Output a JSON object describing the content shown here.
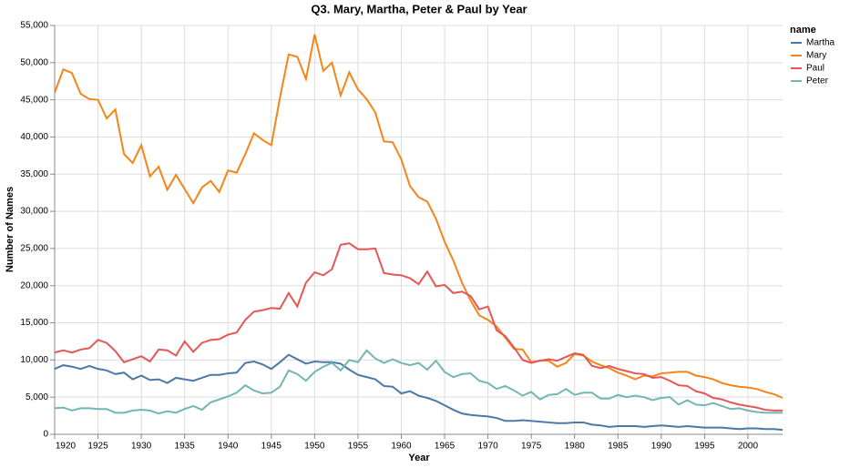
{
  "chart_data": {
    "type": "line",
    "title": "Q3. Mary, Martha, Peter & Paul by Year",
    "x_label": "Year",
    "y_label": "Number of Names",
    "legend_title": "name",
    "legend_position": "right",
    "grid": true,
    "x": [
      1920,
      1921,
      1922,
      1923,
      1924,
      1925,
      1926,
      1927,
      1928,
      1929,
      1930,
      1931,
      1932,
      1933,
      1934,
      1935,
      1936,
      1937,
      1938,
      1939,
      1940,
      1941,
      1942,
      1943,
      1944,
      1945,
      1946,
      1947,
      1948,
      1949,
      1950,
      1951,
      1952,
      1953,
      1954,
      1955,
      1956,
      1957,
      1958,
      1959,
      1960,
      1961,
      1962,
      1963,
      1964,
      1965,
      1966,
      1967,
      1968,
      1969,
      1970,
      1971,
      1972,
      1973,
      1974,
      1975,
      1976,
      1977,
      1978,
      1979,
      1980,
      1981,
      1982,
      1983,
      1984,
      1985,
      1986,
      1987,
      1988,
      1989,
      1990,
      1991,
      1992,
      1993,
      1994,
      1995,
      1996,
      1997,
      1998,
      1999,
      2000,
      2001,
      2002,
      2003,
      2004
    ],
    "xlim": [
      1920,
      2004
    ],
    "xticks": [
      1920,
      1925,
      1930,
      1935,
      1940,
      1945,
      1950,
      1955,
      1960,
      1965,
      1970,
      1975,
      1980,
      1985,
      1990,
      1995,
      2000
    ],
    "ylim": [
      0,
      55000
    ],
    "yticks": [
      0,
      {
        "value": 5000,
        "label": "5,000"
      },
      {
        "value": 10000,
        "label": "10,000"
      },
      {
        "value": 15000,
        "label": "15,000"
      },
      {
        "value": 20000,
        "label": "20,000"
      },
      {
        "value": 25000,
        "label": "25,000"
      },
      {
        "value": 30000,
        "label": "30,000"
      },
      {
        "value": 35000,
        "label": "35,000"
      },
      {
        "value": 40000,
        "label": "40,000"
      },
      {
        "value": 45000,
        "label": "45,000"
      },
      {
        "value": 50000,
        "label": "50,000"
      },
      {
        "value": 55000,
        "label": "55,000"
      }
    ],
    "series": [
      {
        "name": "Martha",
        "color": "#4c78a8",
        "values": [
          8800,
          9300,
          9100,
          8800,
          9200,
          8800,
          8600,
          8100,
          8300,
          7400,
          7900,
          7300,
          7400,
          6900,
          7600,
          7400,
          7200,
          7600,
          8000,
          8000,
          8200,
          8300,
          9600,
          9800,
          9400,
          8800,
          9700,
          10700,
          10100,
          9500,
          9800,
          9700,
          9700,
          9500,
          8700,
          8000,
          7700,
          7400,
          6500,
          6400,
          5500,
          5800,
          5200,
          4900,
          4500,
          3900,
          3300,
          2800,
          2600,
          2500,
          2400,
          2200,
          1800,
          1800,
          1900,
          1800,
          1700,
          1600,
          1500,
          1500,
          1600,
          1600,
          1300,
          1200,
          1000,
          1100,
          1100,
          1100,
          1000,
          1100,
          1200,
          1100,
          1000,
          1100,
          1000,
          900,
          900,
          900,
          800,
          700,
          800,
          800,
          700,
          700,
          600
        ]
      },
      {
        "name": "Mary",
        "color": "#f58518",
        "values": [
          46000,
          49100,
          48600,
          45800,
          45100,
          45000,
          42500,
          43700,
          37700,
          36500,
          38900,
          34700,
          36000,
          32900,
          34900,
          33000,
          31100,
          33200,
          34100,
          32600,
          35500,
          35200,
          37700,
          40500,
          39600,
          38900,
          45300,
          51100,
          50800,
          47800,
          53800,
          48900,
          50000,
          45600,
          48700,
          46400,
          45100,
          43300,
          39400,
          39300,
          37000,
          33400,
          31900,
          31300,
          29000,
          25900,
          23400,
          20400,
          18000,
          16000,
          15400,
          14500,
          13000,
          11500,
          11400,
          9700,
          9900,
          9900,
          9100,
          9600,
          10800,
          10600,
          9800,
          9300,
          8900,
          8300,
          7900,
          7400,
          7900,
          7800,
          8200,
          8300,
          8400,
          8400,
          7900,
          7700,
          7400,
          6900,
          6600,
          6400,
          6300,
          6100,
          5700,
          5400,
          4900
        ]
      },
      {
        "name": "Paul",
        "color": "#e45756",
        "values": [
          11000,
          11300,
          11000,
          11400,
          11600,
          12700,
          12300,
          11200,
          9700,
          10100,
          10500,
          9800,
          11400,
          11300,
          10600,
          12500,
          11100,
          12300,
          12700,
          12800,
          13400,
          13700,
          15400,
          16500,
          16700,
          17000,
          16900,
          19000,
          17200,
          20400,
          21800,
          21400,
          22200,
          25500,
          25700,
          24900,
          24900,
          25000,
          21700,
          21500,
          21400,
          21000,
          20200,
          21900,
          19900,
          20100,
          19000,
          19200,
          18600,
          16800,
          17200,
          14000,
          13200,
          11700,
          10000,
          9600,
          9900,
          10100,
          9900,
          10400,
          10900,
          10700,
          9200,
          8900,
          9200,
          8800,
          8500,
          8200,
          8100,
          7600,
          7700,
          7200,
          6600,
          6500,
          5800,
          5500,
          4900,
          4700,
          4300,
          4000,
          3800,
          3600,
          3300,
          3200,
          3200
        ]
      },
      {
        "name": "Peter",
        "color": "#72b7b2",
        "values": [
          3500,
          3600,
          3200,
          3500,
          3500,
          3400,
          3400,
          2900,
          2900,
          3200,
          3300,
          3200,
          2800,
          3100,
          2900,
          3400,
          3800,
          3300,
          4300,
          4700,
          5100,
          5600,
          6600,
          5900,
          5500,
          5600,
          6400,
          8600,
          8100,
          7200,
          8400,
          9100,
          9600,
          8600,
          10000,
          9700,
          11300,
          10200,
          9600,
          10100,
          9600,
          9300,
          9600,
          8700,
          9900,
          8400,
          7700,
          8100,
          8200,
          7200,
          6900,
          6100,
          6500,
          5900,
          5200,
          5700,
          4700,
          5300,
          5400,
          6100,
          5300,
          5600,
          5600,
          4800,
          4800,
          5300,
          5000,
          5200,
          5000,
          4600,
          4900,
          5000,
          4000,
          4600,
          4000,
          3900,
          4200,
          3800,
          3400,
          3500,
          3200,
          3000,
          2900,
          2900,
          2900
        ]
      }
    ]
  }
}
